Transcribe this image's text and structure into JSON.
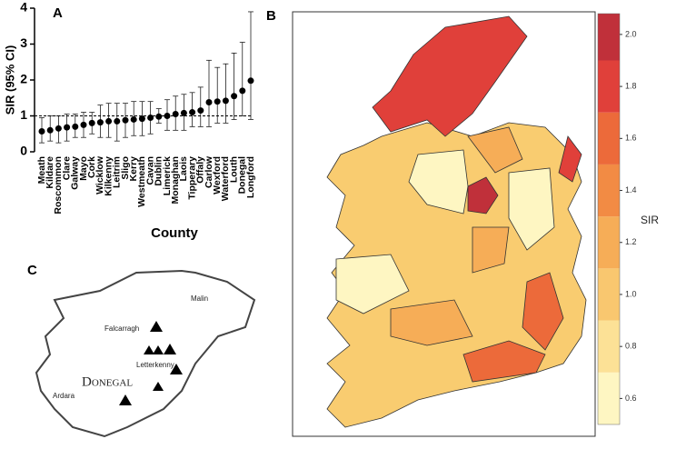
{
  "chart_data": [
    {
      "type": "errorbar",
      "label": "A",
      "xlabel": "County",
      "ylabel": "SIR (95% CI)",
      "categories": [
        "Meath",
        "Kildare",
        "Roscommon",
        "Clare",
        "Galway",
        "Mayo",
        "Cork",
        "Wicklow",
        "Kilkenny",
        "Leitrim",
        "Sligo",
        "Kerry",
        "Westmeath",
        "Cavan",
        "Dublin",
        "Limerick",
        "Monaghan",
        "Laois",
        "Tipperary",
        "Offaly",
        "Carlow",
        "Wexford",
        "Waterford",
        "Louth",
        "Donegal",
        "Longford"
      ],
      "values": [
        0.57,
        0.6,
        0.65,
        0.68,
        0.7,
        0.75,
        0.8,
        0.82,
        0.85,
        0.85,
        0.88,
        0.9,
        0.92,
        0.95,
        0.98,
        1.0,
        1.05,
        1.08,
        1.1,
        1.15,
        1.38,
        1.4,
        1.42,
        1.55,
        1.7,
        1.98
      ],
      "lower": [
        0.25,
        0.3,
        0.25,
        0.3,
        0.4,
        0.4,
        0.5,
        0.4,
        0.4,
        0.3,
        0.4,
        0.45,
        0.45,
        0.5,
        0.8,
        0.6,
        0.6,
        0.6,
        0.7,
        0.7,
        0.7,
        0.8,
        0.8,
        0.9,
        1.0,
        0.9
      ],
      "upper": [
        0.95,
        1.0,
        1.0,
        1.05,
        1.05,
        1.1,
        1.1,
        1.3,
        1.35,
        1.35,
        1.35,
        1.4,
        1.4,
        1.4,
        1.2,
        1.45,
        1.55,
        1.6,
        1.65,
        1.8,
        2.55,
        2.35,
        2.45,
        2.75,
        3.05,
        3.9
      ],
      "ylim": [
        0,
        4
      ],
      "yticks": [
        0,
        1,
        2,
        3,
        4
      ],
      "reference_line": 1,
      "color": "#000000"
    },
    {
      "type": "choropleth",
      "label": "B",
      "colorbar_label": "SIR",
      "clim": [
        0.5,
        2.08
      ],
      "cticks": [
        0.6,
        0.8,
        {
          "value": 1,
          "label": "1.0"
        },
        1.2,
        1.4,
        1.6,
        1.8,
        {
          "value": 2,
          "label": "2.0"
        }
      ],
      "breaks": [
        0.5,
        0.7,
        0.9,
        1.1,
        1.3,
        1.5,
        1.7,
        1.9,
        2.08
      ],
      "colors": [
        "#fef6c2",
        "#fce196",
        "#f9c76f",
        "#f6ad57",
        "#f28b44",
        "#ec6a3a",
        "#e0403a",
        "#c0303a"
      ]
    },
    {
      "type": "map",
      "label": "C",
      "places": [
        "Malin",
        "Falcarragh",
        "Letterkenny",
        "Donegal",
        "Ardara"
      ]
    }
  ]
}
